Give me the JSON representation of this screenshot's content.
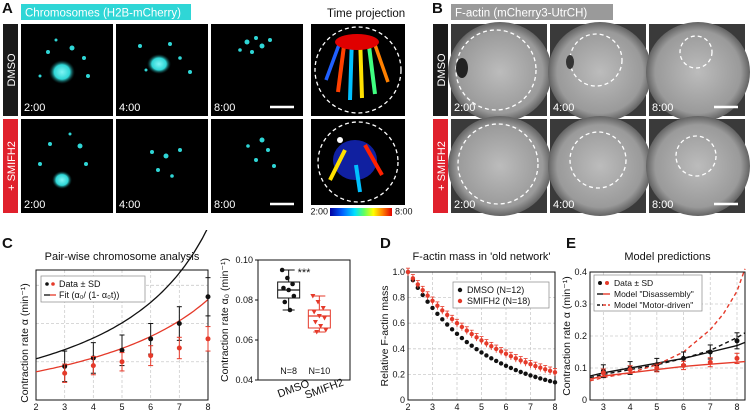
{
  "panel_letters": {
    "A": "A",
    "B": "B",
    "C": "C",
    "D": "D",
    "E": "E"
  },
  "colors": {
    "cyan": "#2fd6d6",
    "red_label": "#e0202c",
    "dmso_bg": "#1a1a1a",
    "smifh2_bg": "#e0202c",
    "data_red": "#e53a2a",
    "data_black": "#111111"
  },
  "panelA": {
    "header": "Chromosomes (H2B-mCherry)",
    "projection_title": "Time projection",
    "row_labels": [
      "DMSO",
      "+ SMIFH2"
    ],
    "times": [
      "2:00",
      "4:00",
      "8:00"
    ],
    "colorbar": {
      "min": "2:00",
      "max": "8:00"
    }
  },
  "panelB": {
    "header": "F-actin (mCherry3-UtrCH)",
    "row_labels": [
      "DMSO",
      "+ SMIFH2"
    ],
    "times": [
      "2:00",
      "4:00",
      "8:00"
    ]
  },
  "chart_data": [
    {
      "id": "C1",
      "type": "line",
      "title": "Pair-wise chromosome analysis",
      "xlabel": "Time (min)",
      "ylabel": "Contraction rate α (min⁻¹)",
      "xlim": [
        2,
        8
      ],
      "ylim": [
        0.05,
        0.22
      ],
      "xticks": [
        2,
        3,
        4,
        5,
        6,
        7,
        8
      ],
      "grid": true,
      "legend": [
        "Data ± SD",
        "Fit (α₀/ (1- α₀t))"
      ],
      "legend_position": "top-left",
      "series": [
        {
          "name": "Data ± SD DMSO",
          "color": "#111111",
          "x": [
            3,
            4,
            5,
            6,
            7,
            8
          ],
          "y": [
            0.094,
            0.105,
            0.115,
            0.13,
            0.15,
            0.185
          ],
          "err": [
            0.02,
            0.02,
            0.02,
            0.02,
            0.022,
            0.025
          ]
        },
        {
          "name": "Data ± SD SMIFH2",
          "color": "#e53a2a",
          "x": [
            3,
            4,
            5,
            6,
            7,
            8
          ],
          "y": [
            0.085,
            0.095,
            0.1,
            0.108,
            0.118,
            0.13
          ],
          "err": [
            0.012,
            0.012,
            0.012,
            0.013,
            0.014,
            0.016
          ]
        }
      ],
      "fits": [
        {
          "color": "#111111",
          "a0": 0.086
        },
        {
          "color": "#e53a2a",
          "a0": 0.074
        }
      ]
    },
    {
      "id": "C2",
      "type": "box",
      "ylabel": "Contraction rate α₀ (min⁻¹)",
      "ylim": [
        0.04,
        0.1
      ],
      "yticks": [
        "0.04",
        "0.06",
        "0.08",
        "0.10"
      ],
      "significance": "***",
      "categories": [
        "DMSO",
        "SMIFH2"
      ],
      "n_labels": [
        "N=8",
        "N=10"
      ],
      "boxes": [
        {
          "color": "#111111",
          "min": 0.075,
          "q1": 0.081,
          "median": 0.085,
          "q3": 0.089,
          "max": 0.095,
          "points": [
            0.095,
            0.091,
            0.088,
            0.086,
            0.085,
            0.082,
            0.079,
            0.075
          ]
        },
        {
          "color": "#e53a2a",
          "min": 0.064,
          "q1": 0.066,
          "median": 0.072,
          "q3": 0.075,
          "max": 0.082,
          "points": [
            0.082,
            0.079,
            0.076,
            0.074,
            0.072,
            0.071,
            0.069,
            0.067,
            0.065,
            0.064
          ]
        }
      ]
    },
    {
      "id": "D",
      "type": "line",
      "title": "F-actin mass in 'old network'",
      "xlabel": "Time (min)",
      "ylabel": "Relative F-actin mass",
      "xlim": [
        2,
        8
      ],
      "ylim": [
        0,
        1.0
      ],
      "xticks": [
        2,
        3,
        4,
        5,
        6,
        7,
        8
      ],
      "yticks": [
        "0",
        "0.2",
        "0.4",
        "0.6",
        "0.8",
        "1.0"
      ],
      "grid": true,
      "legend": [
        "DMSO (N=12)",
        "SMIFH2 (N=18)"
      ],
      "legend_position": "top-right",
      "series": [
        {
          "name": "DMSO (N=12)",
          "color": "#111111",
          "k": 0.33,
          "err": 0.02
        },
        {
          "name": "SMIFH2 (N=18)",
          "color": "#e53a2a",
          "k": 0.255,
          "err": 0.03
        }
      ]
    },
    {
      "id": "E",
      "type": "line",
      "title": "Model predictions",
      "xlabel": "Time (min)",
      "ylabel": "Contraction rate α (min⁻¹)",
      "xlim": [
        2.5,
        8.3
      ],
      "ylim": [
        0,
        0.4
      ],
      "xticks": [
        3,
        4,
        5,
        6,
        7,
        8
      ],
      "yticks": [
        "0",
        "0.1",
        "0.2",
        "0.3",
        "0.4"
      ],
      "grid": true,
      "legend": [
        "Data ± SD",
        "Model \"Disassembly\"",
        "Model \"Motor-driven\""
      ],
      "legend_position": "top-left",
      "series": [
        {
          "name": "Data ± SD DMSO",
          "color": "#111111",
          "x": [
            3,
            4,
            5,
            6,
            7,
            8
          ],
          "y": [
            0.09,
            0.1,
            0.11,
            0.13,
            0.15,
            0.185
          ],
          "err": [
            0.02,
            0.02,
            0.02,
            0.02,
            0.022,
            0.025
          ]
        },
        {
          "name": "Data ± SD SMIFH2",
          "color": "#e53a2a",
          "x": [
            3,
            4,
            5,
            6,
            7,
            8
          ],
          "y": [
            0.085,
            0.095,
            0.1,
            0.108,
            0.118,
            0.13
          ],
          "err": [
            0.012,
            0.012,
            0.012,
            0.013,
            0.014,
            0.016
          ]
        }
      ],
      "models": [
        {
          "label": "Model \"Disassembly\"",
          "dash": false,
          "color": "#111111",
          "x": [
            2.5,
            3,
            4,
            5,
            6,
            7,
            8,
            8.3
          ],
          "y": [
            0.075,
            0.085,
            0.1,
            0.115,
            0.13,
            0.15,
            0.17,
            0.18
          ]
        },
        {
          "label": "Model \"Disassembly\"",
          "dash": false,
          "color": "#e53a2a",
          "x": [
            2.5,
            3,
            4,
            5,
            6,
            7,
            8,
            8.3
          ],
          "y": [
            0.065,
            0.075,
            0.085,
            0.095,
            0.105,
            0.112,
            0.118,
            0.12
          ]
        },
        {
          "label": "Model \"Motor-driven\"",
          "dash": true,
          "color": "#111111",
          "x": [
            2.5,
            3,
            4,
            5,
            6,
            7,
            8,
            8.3
          ],
          "y": [
            0.07,
            0.08,
            0.095,
            0.11,
            0.13,
            0.155,
            0.195,
            0.21
          ]
        },
        {
          "label": "Model \"Motor-driven\"",
          "dash": true,
          "color": "#e53a2a",
          "x": [
            2.5,
            3,
            4,
            5,
            6,
            7,
            7.5,
            8,
            8.3
          ],
          "y": [
            0.06,
            0.07,
            0.085,
            0.11,
            0.15,
            0.22,
            0.27,
            0.34,
            0.41
          ]
        }
      ]
    }
  ]
}
